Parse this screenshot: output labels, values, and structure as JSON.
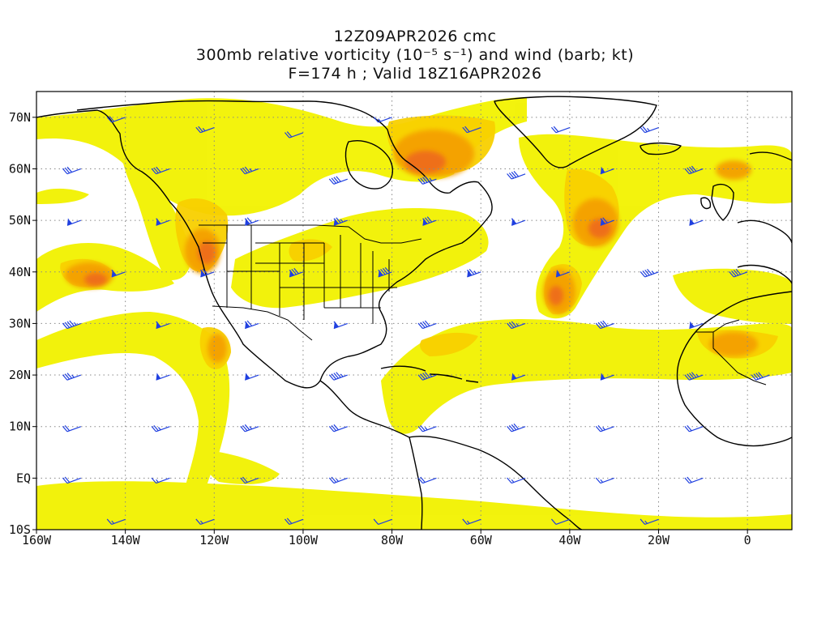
{
  "title": {
    "line1": "12Z09APR2026 cmc",
    "line2": "300mb relative vorticity (10⁻⁵ s⁻¹) and wind (barb; kt)",
    "line3": "F=174 h ; Valid 18Z16APR2026"
  },
  "map": {
    "lon_min": -160,
    "lon_max": 10,
    "lat_min": -10,
    "lat_max": 75,
    "x_ticks": [
      {
        "lon": -160,
        "label": "160W"
      },
      {
        "lon": -140,
        "label": "140W"
      },
      {
        "lon": -120,
        "label": "120W"
      },
      {
        "lon": -100,
        "label": "100W"
      },
      {
        "lon": -80,
        "label": "80W"
      },
      {
        "lon": -60,
        "label": "60W"
      },
      {
        "lon": -40,
        "label": "40W"
      },
      {
        "lon": -20,
        "label": "20W"
      },
      {
        "lon": 0,
        "label": "0"
      }
    ],
    "y_ticks": [
      {
        "lat": 70,
        "label": "70N"
      },
      {
        "lat": 60,
        "label": "60N"
      },
      {
        "lat": 50,
        "label": "50N"
      },
      {
        "lat": 40,
        "label": "40N"
      },
      {
        "lat": 30,
        "label": "30N"
      },
      {
        "lat": 20,
        "label": "20N"
      },
      {
        "lat": 10,
        "label": "10N"
      },
      {
        "lat": 0,
        "label": "EQ"
      },
      {
        "lat": -10,
        "label": "10S"
      }
    ],
    "grid": "dotted",
    "colors": {
      "shade_low": "#f0f000",
      "shade_mid": "#fcd800",
      "shade_high": "#f8a000",
      "shade_max": "#f06020",
      "barb": "#2040e0",
      "coast": "#000000"
    }
  },
  "vorticity_maxima": [
    {
      "lon": -148,
      "lat": 39,
      "level": 3
    },
    {
      "lon": -122,
      "lat": 43,
      "level": 3
    },
    {
      "lon": -67,
      "lat": 62,
      "level": 3
    },
    {
      "lon": -35,
      "lat": 47,
      "level": 3
    },
    {
      "lon": -43,
      "lat": 35,
      "level": 3
    },
    {
      "lon": -5,
      "lat": 25,
      "level": 2
    },
    {
      "lon": -3,
      "lat": 61,
      "level": 2
    },
    {
      "lon": -118,
      "lat": 24,
      "level": 2
    }
  ],
  "wind_barbs": [
    {
      "lon": -140,
      "lat": 70,
      "kt": 20
    },
    {
      "lon": -120,
      "lat": 68,
      "kt": 25
    },
    {
      "lon": -100,
      "lat": 67,
      "kt": 20
    },
    {
      "lon": -80,
      "lat": 70,
      "kt": 15
    },
    {
      "lon": -60,
      "lat": 68,
      "kt": 20
    },
    {
      "lon": -40,
      "lat": 68,
      "kt": 20
    },
    {
      "lon": -20,
      "lat": 68,
      "kt": 25
    },
    {
      "lon": -150,
      "lat": 60,
      "kt": 30
    },
    {
      "lon": -130,
      "lat": 60,
      "kt": 30
    },
    {
      "lon": -110,
      "lat": 60,
      "kt": 35
    },
    {
      "lon": -90,
      "lat": 58,
      "kt": 40
    },
    {
      "lon": -70,
      "lat": 58,
      "kt": 45
    },
    {
      "lon": -50,
      "lat": 59,
      "kt": 40
    },
    {
      "lon": -30,
      "lat": 60,
      "kt": 50
    },
    {
      "lon": -10,
      "lat": 60,
      "kt": 40
    },
    {
      "lon": -150,
      "lat": 50,
      "kt": 55
    },
    {
      "lon": -130,
      "lat": 50,
      "kt": 60
    },
    {
      "lon": -110,
      "lat": 50,
      "kt": 70
    },
    {
      "lon": -90,
      "lat": 50,
      "kt": 75
    },
    {
      "lon": -70,
      "lat": 50,
      "kt": 80
    },
    {
      "lon": -50,
      "lat": 50,
      "kt": 60
    },
    {
      "lon": -30,
      "lat": 50,
      "kt": 70
    },
    {
      "lon": -10,
      "lat": 50,
      "kt": 55
    },
    {
      "lon": -140,
      "lat": 40,
      "kt": 60
    },
    {
      "lon": -120,
      "lat": 40,
      "kt": 70
    },
    {
      "lon": -100,
      "lat": 40,
      "kt": 80
    },
    {
      "lon": -80,
      "lat": 40,
      "kt": 90
    },
    {
      "lon": -60,
      "lat": 40,
      "kt": 75
    },
    {
      "lon": -40,
      "lat": 40,
      "kt": 50
    },
    {
      "lon": -20,
      "lat": 40,
      "kt": 45
    },
    {
      "lon": 0,
      "lat": 40,
      "kt": 40
    },
    {
      "lon": -150,
      "lat": 30,
      "kt": 45
    },
    {
      "lon": -130,
      "lat": 30,
      "kt": 60
    },
    {
      "lon": -110,
      "lat": 30,
      "kt": 70
    },
    {
      "lon": -90,
      "lat": 30,
      "kt": 60
    },
    {
      "lon": -70,
      "lat": 30,
      "kt": 40
    },
    {
      "lon": -50,
      "lat": 30,
      "kt": 35
    },
    {
      "lon": -30,
      "lat": 30,
      "kt": 40
    },
    {
      "lon": -10,
      "lat": 30,
      "kt": 55
    },
    {
      "lon": -150,
      "lat": 20,
      "kt": 35
    },
    {
      "lon": -130,
      "lat": 20,
      "kt": 50
    },
    {
      "lon": -110,
      "lat": 20,
      "kt": 55
    },
    {
      "lon": -90,
      "lat": 20,
      "kt": 45
    },
    {
      "lon": -70,
      "lat": 20,
      "kt": 45
    },
    {
      "lon": -50,
      "lat": 20,
      "kt": 55
    },
    {
      "lon": -30,
      "lat": 20,
      "kt": 50
    },
    {
      "lon": -10,
      "lat": 20,
      "kt": 45
    },
    {
      "lon": 5,
      "lat": 20,
      "kt": 40
    },
    {
      "lon": -150,
      "lat": 10,
      "kt": 20
    },
    {
      "lon": -130,
      "lat": 10,
      "kt": 25
    },
    {
      "lon": -110,
      "lat": 10,
      "kt": 35
    },
    {
      "lon": -90,
      "lat": 10,
      "kt": 30
    },
    {
      "lon": -70,
      "lat": 10,
      "kt": 25
    },
    {
      "lon": -50,
      "lat": 10,
      "kt": 40
    },
    {
      "lon": -30,
      "lat": 10,
      "kt": 25
    },
    {
      "lon": -10,
      "lat": 10,
      "kt": 20
    },
    {
      "lon": -150,
      "lat": 0,
      "kt": 20
    },
    {
      "lon": -130,
      "lat": 0,
      "kt": 15
    },
    {
      "lon": -110,
      "lat": 0,
      "kt": 20
    },
    {
      "lon": -90,
      "lat": 0,
      "kt": 25
    },
    {
      "lon": -70,
      "lat": 0,
      "kt": 20
    },
    {
      "lon": -50,
      "lat": 0,
      "kt": 15
    },
    {
      "lon": -30,
      "lat": 0,
      "kt": 15
    },
    {
      "lon": -10,
      "lat": 0,
      "kt": 20
    },
    {
      "lon": -140,
      "lat": -8,
      "kt": 15
    },
    {
      "lon": -120,
      "lat": -8,
      "kt": 15
    },
    {
      "lon": -100,
      "lat": -8,
      "kt": 20
    },
    {
      "lon": -80,
      "lat": -8,
      "kt": 10
    },
    {
      "lon": -60,
      "lat": -8,
      "kt": 15
    },
    {
      "lon": -40,
      "lat": -8,
      "kt": 10
    },
    {
      "lon": -20,
      "lat": -8,
      "kt": 15
    }
  ]
}
